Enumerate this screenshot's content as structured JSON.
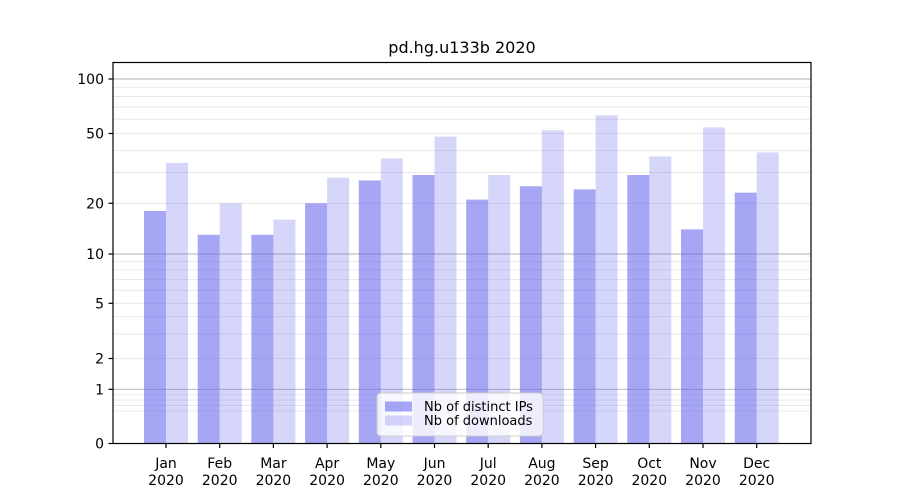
{
  "chart_data": {
    "type": "bar",
    "title": "pd.hg.u133b 2020",
    "categories": [
      "Jan 2020",
      "Feb 2020",
      "Mar 2020",
      "Apr 2020",
      "May 2020",
      "Jun 2020",
      "Jul 2020",
      "Aug 2020",
      "Sep 2020",
      "Oct 2020",
      "Nov 2020",
      "Dec 2020"
    ],
    "months": [
      "Jan",
      "Feb",
      "Mar",
      "Apr",
      "May",
      "Jun",
      "Jul",
      "Aug",
      "Sep",
      "Oct",
      "Nov",
      "Dec"
    ],
    "year_label": "2020",
    "series": [
      {
        "name": "Nb of distinct IPs",
        "values": [
          18,
          13,
          13,
          20,
          27,
          29,
          21,
          25,
          24,
          29,
          14,
          23
        ]
      },
      {
        "name": "Nb of downloads",
        "values": [
          34,
          20,
          16,
          28,
          36,
          48,
          29,
          52,
          63,
          37,
          54,
          39
        ]
      }
    ],
    "yscale": "symlog",
    "yticks": [
      0,
      1,
      2,
      5,
      10,
      20,
      50,
      100
    ],
    "ylim": [
      0,
      130
    ],
    "grid": true,
    "legend_position": "lower center",
    "colors": {
      "bar_base": "#6666ee",
      "dark_bar_alpha": 0.58,
      "light_bar_alpha": 0.27,
      "dark_bar_rendered": "#a6a6f5",
      "light_bar_rendered": "#d6d6fa",
      "grid_major": "#b0b0b0",
      "grid_minor": "#e4e4e4",
      "axis": "#000000"
    }
  }
}
